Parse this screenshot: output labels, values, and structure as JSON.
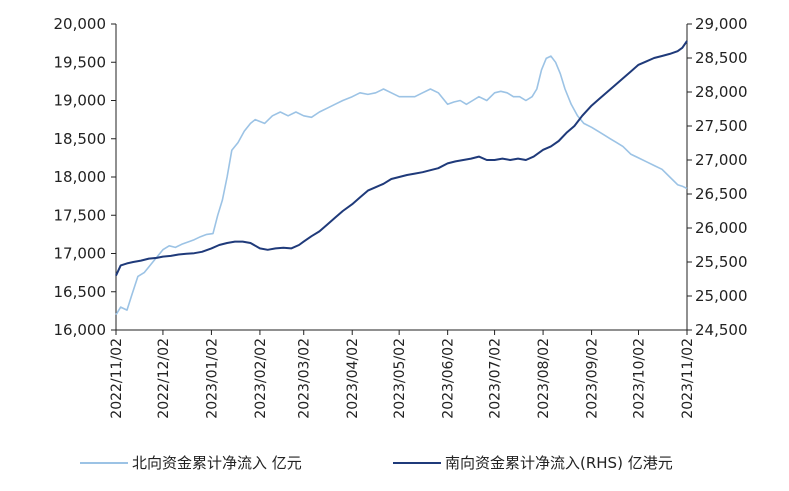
{
  "chart_data": {
    "type": "line",
    "title": "",
    "xlabel": "",
    "ylabel": "",
    "grid": false,
    "legend_position": "bottom",
    "x_ticks": [
      "2022/11/02",
      "2022/12/02",
      "2023/01/02",
      "2023/02/02",
      "2023/03/02",
      "2023/04/02",
      "2023/05/02",
      "2023/06/02",
      "2023/07/02",
      "2023/08/02",
      "2023/09/02",
      "2023/10/02",
      "2023/11/02"
    ],
    "y_left": {
      "min": 16000,
      "max": 20000,
      "ticks": [
        "16,000",
        "16,500",
        "17,000",
        "17,500",
        "18,000",
        "18,500",
        "19,000",
        "19,500",
        "20,000"
      ]
    },
    "y_right": {
      "min": 24500,
      "max": 29000,
      "ticks": [
        "24,500",
        "25,000",
        "25,500",
        "26,000",
        "26,500",
        "27,000",
        "27,500",
        "28,000",
        "28,500",
        "29,000"
      ]
    },
    "series": [
      {
        "name": "北向资金累计净流入 亿元",
        "axis": "left",
        "color": "#9cc3e5",
        "points": [
          [
            "2022/11/02",
            16200
          ],
          [
            "2022/11/05",
            16300
          ],
          [
            "2022/11/09",
            16260
          ],
          [
            "2022/11/12",
            16450
          ],
          [
            "2022/11/16",
            16700
          ],
          [
            "2022/11/20",
            16750
          ],
          [
            "2022/11/24",
            16850
          ],
          [
            "2022/11/28",
            16950
          ],
          [
            "2022/12/02",
            17050
          ],
          [
            "2022/12/06",
            17100
          ],
          [
            "2022/12/10",
            17080
          ],
          [
            "2022/12/14",
            17120
          ],
          [
            "2022/12/18",
            17150
          ],
          [
            "2022/12/22",
            17180
          ],
          [
            "2022/12/26",
            17220
          ],
          [
            "2022/12/30",
            17250
          ],
          [
            "2023/01/03",
            17260
          ],
          [
            "2023/01/06",
            17500
          ],
          [
            "2023/01/09",
            17700
          ],
          [
            "2023/01/12",
            18000
          ],
          [
            "2023/01/15",
            18350
          ],
          [
            "2023/01/19",
            18450
          ],
          [
            "2023/01/23",
            18600
          ],
          [
            "2023/01/27",
            18700
          ],
          [
            "2023/01/30",
            18750
          ],
          [
            "2023/02/05",
            18700
          ],
          [
            "2023/02/10",
            18800
          ],
          [
            "2023/02/15",
            18850
          ],
          [
            "2023/02/20",
            18800
          ],
          [
            "2023/02/25",
            18850
          ],
          [
            "2023/03/02",
            18800
          ],
          [
            "2023/03/07",
            18780
          ],
          [
            "2023/03/12",
            18850
          ],
          [
            "2023/03/17",
            18900
          ],
          [
            "2023/03/22",
            18950
          ],
          [
            "2023/03/27",
            19000
          ],
          [
            "2023/04/02",
            19050
          ],
          [
            "2023/04/07",
            19100
          ],
          [
            "2023/04/12",
            19080
          ],
          [
            "2023/04/17",
            19100
          ],
          [
            "2023/04/22",
            19150
          ],
          [
            "2023/04/27",
            19100
          ],
          [
            "2023/05/02",
            19050
          ],
          [
            "2023/05/07",
            19050
          ],
          [
            "2023/05/12",
            19050
          ],
          [
            "2023/05/17",
            19100
          ],
          [
            "2023/05/22",
            19150
          ],
          [
            "2023/05/27",
            19100
          ],
          [
            "2023/06/02",
            18950
          ],
          [
            "2023/06/06",
            18980
          ],
          [
            "2023/06/10",
            19000
          ],
          [
            "2023/06/14",
            18950
          ],
          [
            "2023/06/18",
            19000
          ],
          [
            "2023/06/22",
            19050
          ],
          [
            "2023/06/27",
            19000
          ],
          [
            "2023/07/02",
            19100
          ],
          [
            "2023/07/06",
            19120
          ],
          [
            "2023/07/10",
            19100
          ],
          [
            "2023/07/14",
            19050
          ],
          [
            "2023/07/18",
            19050
          ],
          [
            "2023/07/22",
            19000
          ],
          [
            "2023/07/26",
            19050
          ],
          [
            "2023/07/29",
            19150
          ],
          [
            "2023/08/01",
            19400
          ],
          [
            "2023/08/04",
            19550
          ],
          [
            "2023/08/07",
            19580
          ],
          [
            "2023/08/10",
            19500
          ],
          [
            "2023/08/13",
            19350
          ],
          [
            "2023/08/16",
            19150
          ],
          [
            "2023/08/20",
            18950
          ],
          [
            "2023/08/24",
            18800
          ],
          [
            "2023/08/28",
            18700
          ],
          [
            "2023/09/02",
            18650
          ],
          [
            "2023/09/06",
            18600
          ],
          [
            "2023/09/10",
            18550
          ],
          [
            "2023/09/14",
            18500
          ],
          [
            "2023/09/18",
            18450
          ],
          [
            "2023/09/22",
            18400
          ],
          [
            "2023/09/27",
            18300
          ],
          [
            "2023/10/02",
            18250
          ],
          [
            "2023/10/07",
            18200
          ],
          [
            "2023/10/12",
            18150
          ],
          [
            "2023/10/17",
            18100
          ],
          [
            "2023/10/22",
            18000
          ],
          [
            "2023/10/27",
            17900
          ],
          [
            "2023/10/30",
            17880
          ],
          [
            "2023/11/02",
            17850
          ]
        ]
      },
      {
        "name": "南向资金累计净流入(RHS) 亿港元",
        "axis": "right",
        "color": "#1f3a7a",
        "points": [
          [
            "2022/11/02",
            25300
          ],
          [
            "2022/11/05",
            25450
          ],
          [
            "2022/11/09",
            25480
          ],
          [
            "2022/11/13",
            25500
          ],
          [
            "2022/11/18",
            25520
          ],
          [
            "2022/11/23",
            25550
          ],
          [
            "2022/11/28",
            25560
          ],
          [
            "2022/12/02",
            25580
          ],
          [
            "2022/12/07",
            25590
          ],
          [
            "2022/12/12",
            25610
          ],
          [
            "2022/12/17",
            25620
          ],
          [
            "2022/12/22",
            25630
          ],
          [
            "2022/12/27",
            25650
          ],
          [
            "2023/01/02",
            25700
          ],
          [
            "2023/01/07",
            25750
          ],
          [
            "2023/01/12",
            25780
          ],
          [
            "2023/01/17",
            25800
          ],
          [
            "2023/01/22",
            25800
          ],
          [
            "2023/01/27",
            25780
          ],
          [
            "2023/02/02",
            25700
          ],
          [
            "2023/02/07",
            25680
          ],
          [
            "2023/02/12",
            25700
          ],
          [
            "2023/02/17",
            25710
          ],
          [
            "2023/02/22",
            25700
          ],
          [
            "2023/02/27",
            25750
          ],
          [
            "2023/03/02",
            25800
          ],
          [
            "2023/03/07",
            25880
          ],
          [
            "2023/03/12",
            25950
          ],
          [
            "2023/03/17",
            26050
          ],
          [
            "2023/03/22",
            26150
          ],
          [
            "2023/03/27",
            26250
          ],
          [
            "2023/04/02",
            26350
          ],
          [
            "2023/04/07",
            26450
          ],
          [
            "2023/04/12",
            26550
          ],
          [
            "2023/04/17",
            26600
          ],
          [
            "2023/04/22",
            26650
          ],
          [
            "2023/04/27",
            26720
          ],
          [
            "2023/05/02",
            26750
          ],
          [
            "2023/05/07",
            26780
          ],
          [
            "2023/05/12",
            26800
          ],
          [
            "2023/05/17",
            26820
          ],
          [
            "2023/05/22",
            26850
          ],
          [
            "2023/05/27",
            26880
          ],
          [
            "2023/06/02",
            26950
          ],
          [
            "2023/06/07",
            26980
          ],
          [
            "2023/06/12",
            27000
          ],
          [
            "2023/06/17",
            27020
          ],
          [
            "2023/06/22",
            27050
          ],
          [
            "2023/06/27",
            27000
          ],
          [
            "2023/07/02",
            27000
          ],
          [
            "2023/07/07",
            27020
          ],
          [
            "2023/07/12",
            27000
          ],
          [
            "2023/07/17",
            27020
          ],
          [
            "2023/07/22",
            27000
          ],
          [
            "2023/07/27",
            27050
          ],
          [
            "2023/08/02",
            27150
          ],
          [
            "2023/08/07",
            27200
          ],
          [
            "2023/08/12",
            27280
          ],
          [
            "2023/08/17",
            27400
          ],
          [
            "2023/08/22",
            27500
          ],
          [
            "2023/08/27",
            27650
          ],
          [
            "2023/09/02",
            27800
          ],
          [
            "2023/09/07",
            27900
          ],
          [
            "2023/09/12",
            28000
          ],
          [
            "2023/09/17",
            28100
          ],
          [
            "2023/09/22",
            28200
          ],
          [
            "2023/09/27",
            28300
          ],
          [
            "2023/10/02",
            28400
          ],
          [
            "2023/10/07",
            28450
          ],
          [
            "2023/10/12",
            28500
          ],
          [
            "2023/10/17",
            28530
          ],
          [
            "2023/10/22",
            28560
          ],
          [
            "2023/10/27",
            28600
          ],
          [
            "2023/10/30",
            28650
          ],
          [
            "2023/11/02",
            28750
          ]
        ]
      }
    ]
  }
}
